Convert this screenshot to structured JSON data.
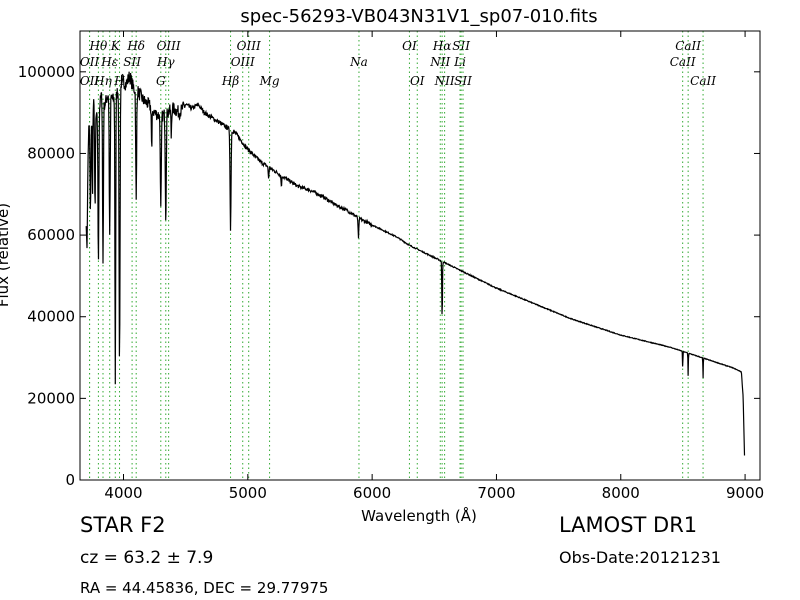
{
  "chart_data": {
    "type": "line",
    "title": "spec-56293-VB043N31V1_sp07-010.fits",
    "xlabel": "Wavelength (Å)",
    "ylabel": "Flux (relative)",
    "xlim": [
      3650,
      9120
    ],
    "ylim": [
      0,
      110000
    ],
    "xticks": [
      4000,
      5000,
      6000,
      7000,
      8000,
      9000
    ],
    "yticks": [
      0,
      20000,
      40000,
      60000,
      80000,
      100000
    ],
    "grid": false,
    "line_color": "#000000",
    "marker_color": "#33aa33",
    "continuum": [
      [
        3700,
        74000
      ],
      [
        3720,
        86000
      ],
      [
        3740,
        88000
      ],
      [
        3760,
        92000
      ],
      [
        3790,
        88000
      ],
      [
        3820,
        94000
      ],
      [
        3850,
        92000
      ],
      [
        3880,
        95000
      ],
      [
        3920,
        93000
      ],
      [
        3950,
        95000
      ],
      [
        3990,
        98000
      ],
      [
        4020,
        97000
      ],
      [
        4050,
        99000
      ],
      [
        4080,
        96000
      ],
      [
        4120,
        95000
      ],
      [
        4160,
        93000
      ],
      [
        4200,
        92000
      ],
      [
        4250,
        90000
      ],
      [
        4300,
        89000
      ],
      [
        4400,
        91000
      ],
      [
        4450,
        90000
      ],
      [
        4500,
        92000
      ],
      [
        4550,
        91000
      ],
      [
        4600,
        92000
      ],
      [
        4650,
        90000
      ],
      [
        4700,
        89000
      ],
      [
        4750,
        88000
      ],
      [
        4800,
        87000
      ],
      [
        4900,
        85000
      ],
      [
        5000,
        81000
      ],
      [
        5100,
        78000
      ],
      [
        5200,
        76000
      ],
      [
        5300,
        74000
      ],
      [
        5400,
        72000
      ],
      [
        5500,
        71000
      ],
      [
        5600,
        69500
      ],
      [
        5700,
        67500
      ],
      [
        5800,
        66000
      ],
      [
        5900,
        64000
      ],
      [
        6000,
        62500
      ],
      [
        6100,
        61000
      ],
      [
        6200,
        59500
      ],
      [
        6300,
        57500
      ],
      [
        6400,
        56000
      ],
      [
        6500,
        54500
      ],
      [
        6600,
        53000
      ],
      [
        6700,
        51500
      ],
      [
        6800,
        50000
      ],
      [
        6900,
        48500
      ],
      [
        7000,
        47000
      ],
      [
        7200,
        44500
      ],
      [
        7400,
        42000
      ],
      [
        7600,
        39500
      ],
      [
        7800,
        37500
      ],
      [
        8000,
        35500
      ],
      [
        8200,
        34000
      ],
      [
        8400,
        32500
      ],
      [
        8500,
        31500
      ],
      [
        8600,
        30500
      ],
      [
        8700,
        29500
      ],
      [
        8800,
        28500
      ],
      [
        8900,
        27500
      ],
      [
        8970,
        26500
      ],
      [
        8985,
        20000
      ],
      [
        8995,
        6000
      ]
    ],
    "absorptions": [
      [
        3705,
        57000,
        12
      ],
      [
        3734,
        65000,
        8
      ],
      [
        3750,
        70000,
        6
      ],
      [
        3771,
        65000,
        7
      ],
      [
        3798,
        53000,
        8
      ],
      [
        3835,
        53000,
        8
      ],
      [
        3889,
        61000,
        9
      ],
      [
        3934,
        24000,
        7
      ],
      [
        3968,
        29000,
        9
      ],
      [
        4102,
        68000,
        8
      ],
      [
        4227,
        80000,
        6
      ],
      [
        4300,
        66000,
        9
      ],
      [
        4340,
        64000,
        9
      ],
      [
        4384,
        84000,
        6
      ],
      [
        4861,
        61000,
        9
      ],
      [
        5167,
        74000,
        7
      ],
      [
        5270,
        72000,
        7
      ],
      [
        5890,
        59000,
        7
      ],
      [
        6563,
        39500,
        6
      ],
      [
        8498,
        27000,
        4
      ],
      [
        8542,
        25500,
        4
      ],
      [
        8662,
        25000,
        4
      ]
    ],
    "line_markers": [
      {
        "label": "OII",
        "wave": 3727,
        "row": "top2"
      },
      {
        "label": "OII",
        "wave": 3727,
        "row": "top3"
      },
      {
        "label": "Hθ",
        "wave": 3798,
        "row": "top1"
      },
      {
        "label": "Hη",
        "wave": 3835,
        "row": "top3"
      },
      {
        "label": "Hε",
        "wave": 3889,
        "row": "top2"
      },
      {
        "label": "K",
        "wave": 3934,
        "row": "top1"
      },
      {
        "label": "H",
        "wave": 3968,
        "row": "top3"
      },
      {
        "label": "SII",
        "wave": 4069,
        "row": "top2"
      },
      {
        "label": "Hδ",
        "wave": 4102,
        "row": "top1"
      },
      {
        "label": "G",
        "wave": 4300,
        "row": "top3"
      },
      {
        "label": "Hγ",
        "wave": 4340,
        "row": "top2"
      },
      {
        "label": "OIII",
        "wave": 4363,
        "row": "top1"
      },
      {
        "label": "Hβ",
        "wave": 4861,
        "row": "top3"
      },
      {
        "label": "OIII",
        "wave": 4959,
        "row": "top2"
      },
      {
        "label": "OIII",
        "wave": 5007,
        "row": "top1"
      },
      {
        "label": "Mg",
        "wave": 5175,
        "row": "top3"
      },
      {
        "label": "Na",
        "wave": 5894,
        "row": "top2"
      },
      {
        "label": "OI",
        "wave": 6300,
        "row": "top1"
      },
      {
        "label": "OI",
        "wave": 6363,
        "row": "top3"
      },
      {
        "label": "NII",
        "wave": 6548,
        "row": "top2"
      },
      {
        "label": "Hα",
        "wave": 6563,
        "row": "top1"
      },
      {
        "label": "NII",
        "wave": 6583,
        "row": "top3"
      },
      {
        "label": "Li",
        "wave": 6707,
        "row": "top2"
      },
      {
        "label": "SII",
        "wave": 6716,
        "row": "top1"
      },
      {
        "label": "SII",
        "wave": 6731,
        "row": "top3"
      },
      {
        "label": "CaII",
        "wave": 8498,
        "row": "top2"
      },
      {
        "label": "CaII",
        "wave": 8542,
        "row": "top1"
      },
      {
        "label": "CaII",
        "wave": 8662,
        "row": "top3"
      }
    ]
  },
  "info": {
    "object_class": "STAR   F2",
    "survey": "LAMOST DR1",
    "redshift": "cz = 63.2  ± 7.9",
    "obs_date": "Obs-Date:20121231",
    "coords": "RA = 44.45836, DEC = 29.77975"
  }
}
